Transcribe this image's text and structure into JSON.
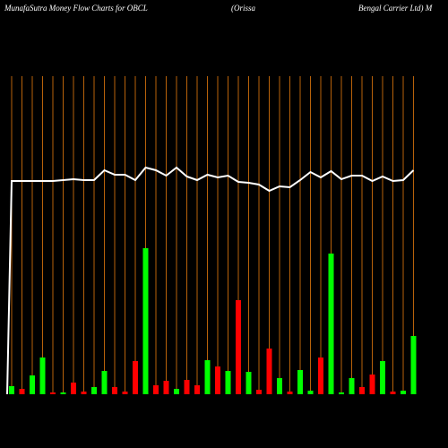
{
  "chart_data": {
    "type": "bar",
    "title_parts": [
      "MunafaSutra  Money Flow  Charts for OBCL",
      "(Orissa",
      "Bengal Carrier Ltd) M"
    ],
    "categories": [
      null,
      null,
      null,
      null,
      null,
      null,
      null,
      null,
      null,
      null,
      null,
      null,
      null,
      null,
      null,
      null,
      null,
      null,
      null,
      null,
      null,
      null,
      null,
      null,
      null,
      null,
      null,
      null,
      null,
      null,
      null,
      null,
      null,
      null,
      null,
      null,
      null,
      null,
      null,
      null
    ],
    "values": [
      9,
      6,
      21,
      41,
      2,
      2,
      13,
      3,
      8,
      26,
      8,
      3,
      37,
      163,
      10,
      15,
      6,
      16,
      10,
      38,
      31,
      26,
      105,
      25,
      5,
      51,
      18,
      3,
      27,
      4,
      41,
      157,
      2,
      18,
      8,
      22,
      37,
      3,
      4,
      65
    ],
    "colors": [
      "#00ff00",
      "#ff0000",
      "#00ff00",
      "#00ff00",
      "#ff0000",
      "#00ff00",
      "#ff0000",
      "#ff0000",
      "#00ff00",
      "#00ff00",
      "#ff0000",
      "#ff0000",
      "#ff0000",
      "#00ff00",
      "#ff0000",
      "#ff0000",
      "#00ff00",
      "#ff0000",
      "#ff0000",
      "#00ff00",
      "#ff0000",
      "#00ff00",
      "#ff0000",
      "#00ff00",
      "#ff0000",
      "#ff0000",
      "#00ff00",
      "#ff0000",
      "#00ff00",
      "#00ff00",
      "#ff0000",
      "#00ff00",
      "#00ff00",
      "#00ff00",
      "#ff0000",
      "#ff0000",
      "#00ff00",
      "#ff0000",
      "#00ff00",
      "#00ff00"
    ],
    "line": {
      "color": "#ffffff",
      "values": [
        238,
        238,
        238,
        238,
        238,
        239,
        240,
        239,
        239,
        250,
        245,
        245,
        239,
        253,
        250,
        244,
        253,
        243,
        239,
        245,
        242,
        244,
        237,
        236,
        234,
        227,
        232,
        231,
        239,
        248,
        242,
        249,
        240,
        244,
        244,
        238,
        243,
        238,
        239,
        250
      ]
    },
    "gridline_color": "#b8620a"
  }
}
